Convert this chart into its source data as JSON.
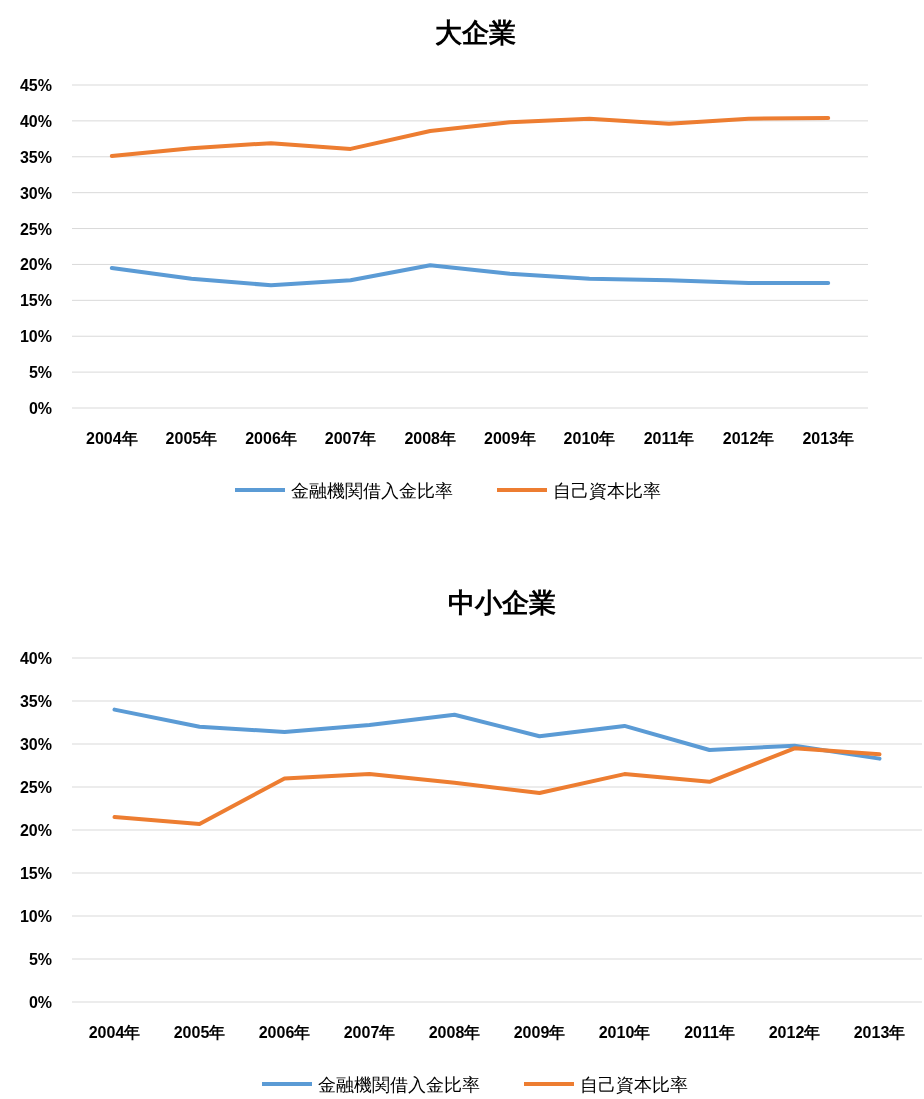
{
  "chart_data": [
    {
      "type": "line",
      "title": "大企業",
      "categories": [
        "2004年",
        "2005年",
        "2006年",
        "2007年",
        "2008年",
        "2009年",
        "2010年",
        "2011年",
        "2012年",
        "2013年"
      ],
      "series": [
        {
          "name": "金融機関借入金比率",
          "color": "#5b9bd5",
          "values": [
            19.5,
            18.0,
            17.1,
            17.8,
            19.9,
            18.7,
            18.0,
            17.8,
            17.4,
            17.4
          ]
        },
        {
          "name": "自己資本比率",
          "color": "#ed7d31",
          "values": [
            35.1,
            36.2,
            36.9,
            36.1,
            38.6,
            39.8,
            40.3,
            39.6,
            40.3,
            40.4
          ]
        }
      ],
      "ylim": [
        0,
        45
      ],
      "yticks": [
        {
          "value": 0,
          "label": "0%"
        },
        {
          "value": 5,
          "label": "5%"
        },
        {
          "value": 10,
          "label": "10%"
        },
        {
          "value": 15,
          "label": "15%"
        },
        {
          "value": 20,
          "label": "20%"
        },
        {
          "value": 25,
          "label": "25%"
        },
        {
          "value": 30,
          "label": "30%"
        },
        {
          "value": 35,
          "label": "35%"
        },
        {
          "value": 40,
          "label": "40%"
        },
        {
          "value": 45,
          "label": "45%"
        }
      ],
      "grid": "y",
      "legend": "bottom"
    },
    {
      "type": "line",
      "title": "中小企業",
      "categories": [
        "2004年",
        "2005年",
        "2006年",
        "2007年",
        "2008年",
        "2009年",
        "2010年",
        "2011年",
        "2012年",
        "2013年"
      ],
      "series": [
        {
          "name": "金融機関借入金比率",
          "color": "#5b9bd5",
          "values": [
            34.0,
            32.0,
            31.4,
            32.2,
            33.4,
            30.9,
            32.1,
            29.3,
            29.8,
            28.3
          ]
        },
        {
          "name": "自己資本比率",
          "color": "#ed7d31",
          "values": [
            21.5,
            20.7,
            26.0,
            26.5,
            25.5,
            24.3,
            26.5,
            25.6,
            29.5,
            28.8
          ]
        }
      ],
      "ylim": [
        0,
        40
      ],
      "yticks": [
        {
          "value": 0,
          "label": "0%"
        },
        {
          "value": 5,
          "label": "5%"
        },
        {
          "value": 10,
          "label": "10%"
        },
        {
          "value": 15,
          "label": "15%"
        },
        {
          "value": 20,
          "label": "20%"
        },
        {
          "value": 25,
          "label": "25%"
        },
        {
          "value": 30,
          "label": "30%"
        },
        {
          "value": 35,
          "label": "35%"
        },
        {
          "value": 40,
          "label": "40%"
        }
      ],
      "grid": "y",
      "legend": "bottom"
    }
  ]
}
